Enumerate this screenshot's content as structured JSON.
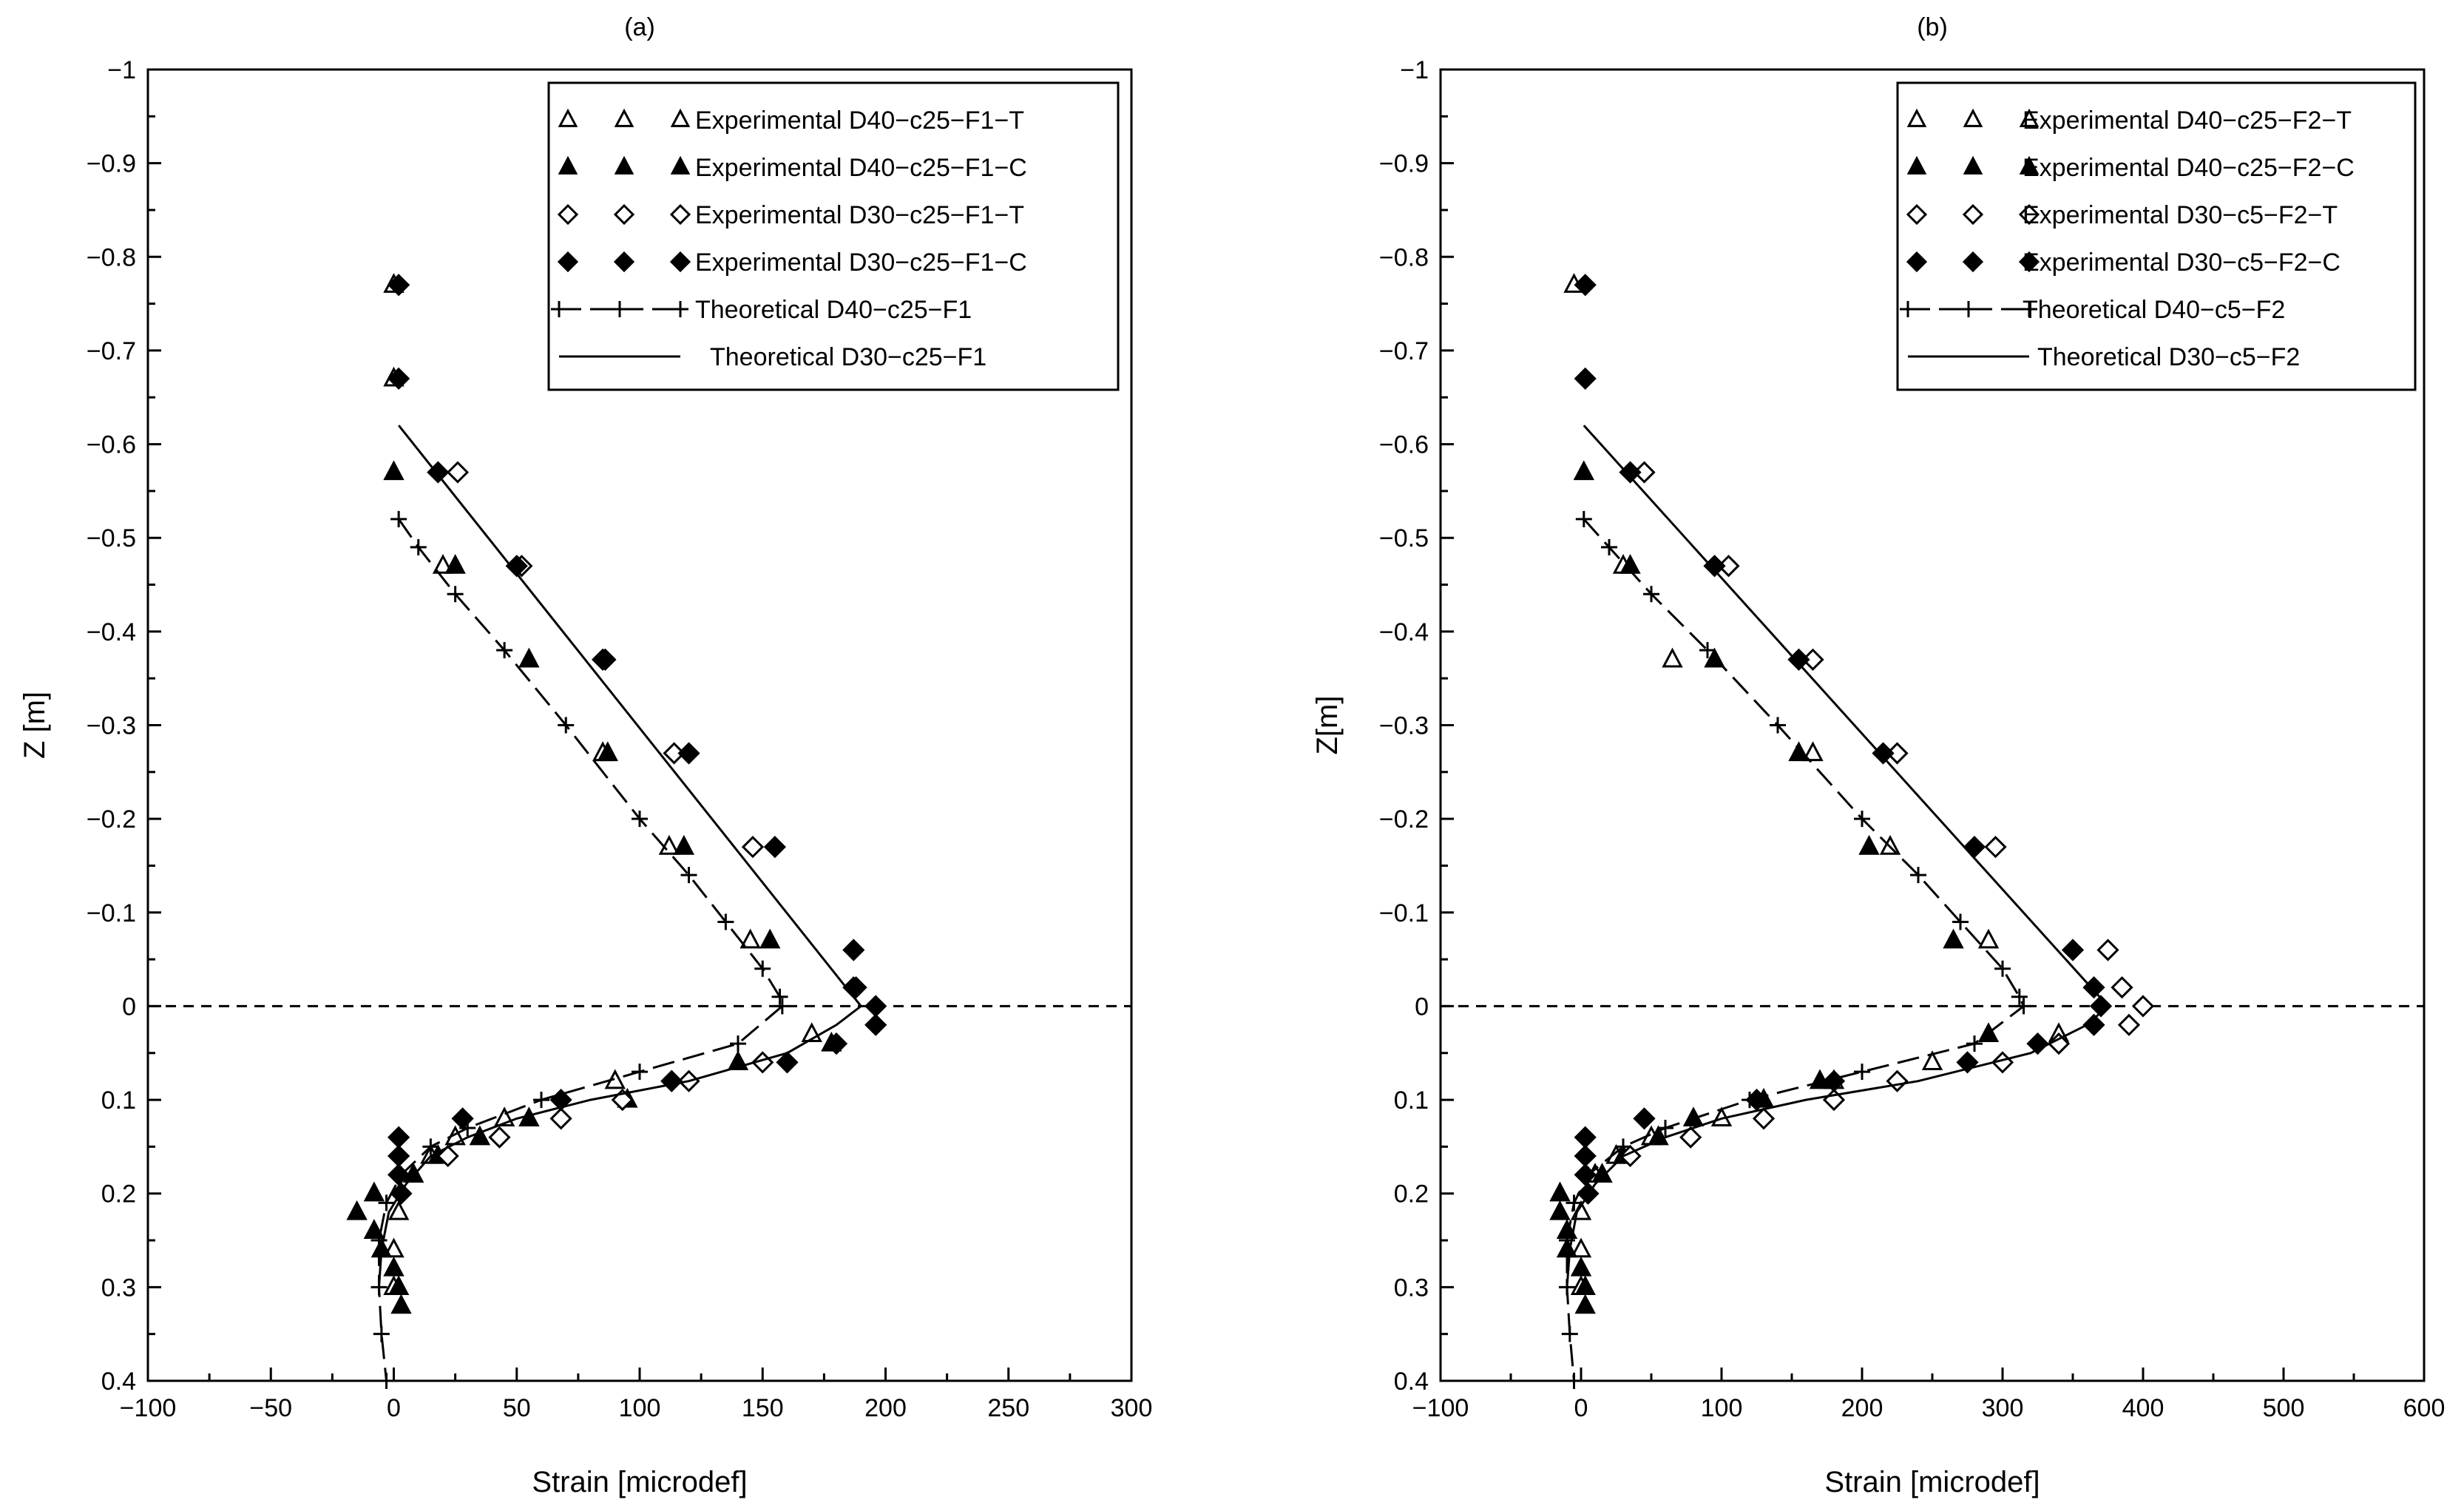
{
  "chart_data": [
    {
      "type": "scatter",
      "panel_label": "(a)",
      "xlabel": "Strain [microdef]",
      "ylabel": "Z [m]",
      "xlim": [
        -100,
        300
      ],
      "ylim": [
        -1,
        0.4
      ],
      "y_inverted": true,
      "x_ticks": [
        "−100",
        "−50",
        "0",
        "50",
        "100",
        "150",
        "200",
        "250",
        "300"
      ],
      "y_ticks": [
        "−1",
        "−0.9",
        "−0.8",
        "−0.7",
        "−0.6",
        "−0.5",
        "−0.4",
        "−0.3",
        "−0.2",
        "−0.1",
        "0",
        "0.1",
        "0.2",
        "0.3",
        "0.4"
      ],
      "reference_line_z": 0,
      "legend_position": "top-right",
      "series": [
        {
          "name": "Experimental D40−c25−F1−T",
          "marker": "triangle-open",
          "points": [
            [
              0,
              -0.77
            ],
            [
              0,
              -0.67
            ],
            [
              20,
              -0.47
            ],
            [
              85,
              -0.27
            ],
            [
              112,
              -0.17
            ],
            [
              145,
              -0.07
            ],
            [
              170,
              0.03
            ],
            [
              90,
              0.08
            ],
            [
              45,
              0.12
            ],
            [
              25,
              0.14
            ],
            [
              15,
              0.16
            ],
            [
              8,
              0.18
            ],
            [
              2,
              0.22
            ],
            [
              0,
              0.26
            ],
            [
              0,
              0.3
            ]
          ]
        },
        {
          "name": "Experimental D40−c25−F1−C",
          "marker": "triangle-filled",
          "points": [
            [
              0,
              -0.57
            ],
            [
              25,
              -0.47
            ],
            [
              55,
              -0.37
            ],
            [
              87,
              -0.27
            ],
            [
              118,
              -0.17
            ],
            [
              153,
              -0.07
            ],
            [
              178,
              0.04
            ],
            [
              140,
              0.06
            ],
            [
              95,
              0.1
            ],
            [
              55,
              0.12
            ],
            [
              35,
              0.14
            ],
            [
              18,
              0.16
            ],
            [
              8,
              0.18
            ],
            [
              -8,
              0.2
            ],
            [
              -15,
              0.22
            ],
            [
              -8,
              0.24
            ],
            [
              -5,
              0.26
            ],
            [
              0,
              0.28
            ],
            [
              2,
              0.3
            ],
            [
              3,
              0.32
            ]
          ]
        },
        {
          "name": "Experimental D30−c25−F1−T",
          "marker": "diamond-open",
          "points": [
            [
              26,
              -0.57
            ],
            [
              52,
              -0.47
            ],
            [
              86,
              -0.37
            ],
            [
              114,
              -0.27
            ],
            [
              146,
              -0.17
            ],
            [
              188,
              -0.02
            ],
            [
              150,
              0.06
            ],
            [
              120,
              0.08
            ],
            [
              93,
              0.1
            ],
            [
              68,
              0.12
            ],
            [
              43,
              0.14
            ],
            [
              22,
              0.16
            ]
          ]
        },
        {
          "name": "Experimental D30−c25−F1−C",
          "marker": "diamond-filled",
          "points": [
            [
              2,
              -0.77
            ],
            [
              2,
              -0.67
            ],
            [
              18,
              -0.57
            ],
            [
              50,
              -0.47
            ],
            [
              85,
              -0.37
            ],
            [
              120,
              -0.27
            ],
            [
              155,
              -0.17
            ],
            [
              187,
              -0.06
            ],
            [
              187,
              -0.02
            ],
            [
              196,
              0
            ],
            [
              196,
              0.02
            ],
            [
              180,
              0.04
            ],
            [
              160,
              0.06
            ],
            [
              113,
              0.08
            ],
            [
              68,
              0.1
            ],
            [
              28,
              0.12
            ],
            [
              2,
              0.14
            ],
            [
              2,
              0.16
            ],
            [
              2,
              0.18
            ],
            [
              3,
              0.2
            ]
          ]
        },
        {
          "name": "Theoretical D40−c25−F1",
          "line": "dashed-plus",
          "points": [
            [
              2,
              -0.52
            ],
            [
              10,
              -0.49
            ],
            [
              25,
              -0.44
            ],
            [
              45,
              -0.38
            ],
            [
              70,
              -0.3
            ],
            [
              100,
              -0.2
            ],
            [
              120,
              -0.14
            ],
            [
              135,
              -0.09
            ],
            [
              150,
              -0.04
            ],
            [
              157,
              -0.01
            ],
            [
              158,
              0
            ],
            [
              140,
              0.04
            ],
            [
              100,
              0.07
            ],
            [
              60,
              0.1
            ],
            [
              30,
              0.13
            ],
            [
              15,
              0.15
            ],
            [
              3,
              0.18
            ],
            [
              -3,
              0.21
            ],
            [
              -6,
              0.25
            ],
            [
              -6,
              0.3
            ],
            [
              -5,
              0.35
            ],
            [
              -3,
              0.4
            ]
          ]
        },
        {
          "name": "Theoretical D30−c25−F1",
          "line": "solid",
          "points": [
            [
              2,
              -0.62
            ],
            [
              190,
              0
            ],
            [
              180,
              0.02
            ],
            [
              160,
              0.05
            ],
            [
              120,
              0.08
            ],
            [
              80,
              0.1
            ],
            [
              50,
              0.12
            ],
            [
              30,
              0.14
            ],
            [
              15,
              0.16
            ],
            [
              5,
              0.19
            ],
            [
              -2,
              0.22
            ],
            [
              -5,
              0.26
            ],
            [
              -6,
              0.3
            ]
          ]
        }
      ]
    },
    {
      "type": "scatter",
      "panel_label": "(b)",
      "xlabel": "Strain [microdef]",
      "ylabel": "Z[m]",
      "xlim": [
        -100,
        600
      ],
      "ylim": [
        -1,
        0.4
      ],
      "y_inverted": true,
      "x_ticks": [
        "−100",
        "0",
        "100",
        "200",
        "300",
        "400",
        "500",
        "600"
      ],
      "y_ticks": [
        "−1",
        "−0.9",
        "−0.8",
        "−0.7",
        "−0.6",
        "−0.5",
        "−0.4",
        "−0.3",
        "−0.2",
        "−0.1",
        "0",
        "0.1",
        "0.2",
        "0.3",
        "0.4"
      ],
      "reference_line_z": 0,
      "legend_position": "top-right",
      "series": [
        {
          "name": "Experimental D40−c25−F2−T",
          "marker": "triangle-open",
          "points": [
            [
              -5,
              -0.77
            ],
            [
              30,
              -0.47
            ],
            [
              65,
              -0.37
            ],
            [
              165,
              -0.27
            ],
            [
              220,
              -0.17
            ],
            [
              290,
              -0.07
            ],
            [
              340,
              0.03
            ],
            [
              250,
              0.06
            ],
            [
              180,
              0.08
            ],
            [
              100,
              0.12
            ],
            [
              50,
              0.14
            ],
            [
              25,
              0.16
            ],
            [
              10,
              0.18
            ],
            [
              0,
              0.22
            ],
            [
              0,
              0.26
            ],
            [
              0,
              0.3
            ]
          ]
        },
        {
          "name": "Experimental D40−c25−F2−C",
          "marker": "triangle-filled",
          "points": [
            [
              2,
              -0.57
            ],
            [
              35,
              -0.47
            ],
            [
              95,
              -0.37
            ],
            [
              155,
              -0.27
            ],
            [
              205,
              -0.17
            ],
            [
              265,
              -0.07
            ],
            [
              290,
              0.03
            ],
            [
              170,
              0.08
            ],
            [
              130,
              0.1
            ],
            [
              80,
              0.12
            ],
            [
              55,
              0.14
            ],
            [
              30,
              0.16
            ],
            [
              15,
              0.18
            ],
            [
              -15,
              0.2
            ],
            [
              -15,
              0.22
            ],
            [
              -10,
              0.24
            ],
            [
              -10,
              0.26
            ],
            [
              0,
              0.28
            ],
            [
              3,
              0.3
            ],
            [
              3,
              0.32
            ]
          ]
        },
        {
          "name": "Experimental D30−c5−F2−T",
          "marker": "diamond-open",
          "points": [
            [
              45,
              -0.57
            ],
            [
              105,
              -0.47
            ],
            [
              165,
              -0.37
            ],
            [
              225,
              -0.27
            ],
            [
              295,
              -0.17
            ],
            [
              375,
              -0.06
            ],
            [
              385,
              -0.02
            ],
            [
              400,
              0
            ],
            [
              390,
              0.02
            ],
            [
              340,
              0.04
            ],
            [
              300,
              0.06
            ],
            [
              225,
              0.08
            ],
            [
              180,
              0.1
            ],
            [
              130,
              0.12
            ],
            [
              78,
              0.14
            ],
            [
              35,
              0.16
            ]
          ]
        },
        {
          "name": "Experimental D30−c5−F2−C",
          "marker": "diamond-filled",
          "points": [
            [
              3,
              -0.77
            ],
            [
              3,
              -0.67
            ],
            [
              35,
              -0.57
            ],
            [
              95,
              -0.47
            ],
            [
              155,
              -0.37
            ],
            [
              215,
              -0.27
            ],
            [
              280,
              -0.17
            ],
            [
              350,
              -0.06
            ],
            [
              365,
              -0.02
            ],
            [
              370,
              0
            ],
            [
              365,
              0.02
            ],
            [
              325,
              0.04
            ],
            [
              275,
              0.06
            ],
            [
              180,
              0.08
            ],
            [
              125,
              0.1
            ],
            [
              45,
              0.12
            ],
            [
              3,
              0.14
            ],
            [
              3,
              0.16
            ],
            [
              3,
              0.18
            ],
            [
              5,
              0.2
            ]
          ]
        },
        {
          "name": "Theoretical D40−c5−F2",
          "line": "dashed-plus",
          "points": [
            [
              2,
              -0.52
            ],
            [
              20,
              -0.49
            ],
            [
              50,
              -0.44
            ],
            [
              90,
              -0.38
            ],
            [
              140,
              -0.3
            ],
            [
              200,
              -0.2
            ],
            [
              240,
              -0.14
            ],
            [
              270,
              -0.09
            ],
            [
              300,
              -0.04
            ],
            [
              312,
              -0.01
            ],
            [
              315,
              0
            ],
            [
              280,
              0.04
            ],
            [
              200,
              0.07
            ],
            [
              120,
              0.1
            ],
            [
              60,
              0.13
            ],
            [
              30,
              0.15
            ],
            [
              5,
              0.18
            ],
            [
              -5,
              0.21
            ],
            [
              -10,
              0.25
            ],
            [
              -10,
              0.3
            ],
            [
              -8,
              0.35
            ],
            [
              -5,
              0.4
            ]
          ]
        },
        {
          "name": "Theoretical D30−c5−F2",
          "line": "solid",
          "points": [
            [
              2,
              -0.62
            ],
            [
              375,
              0
            ],
            [
              360,
              0.02
            ],
            [
              320,
              0.05
            ],
            [
              240,
              0.08
            ],
            [
              160,
              0.1
            ],
            [
              100,
              0.12
            ],
            [
              60,
              0.14
            ],
            [
              30,
              0.16
            ],
            [
              10,
              0.19
            ],
            [
              -3,
              0.22
            ],
            [
              -8,
              0.26
            ],
            [
              -10,
              0.3
            ]
          ]
        }
      ]
    }
  ]
}
